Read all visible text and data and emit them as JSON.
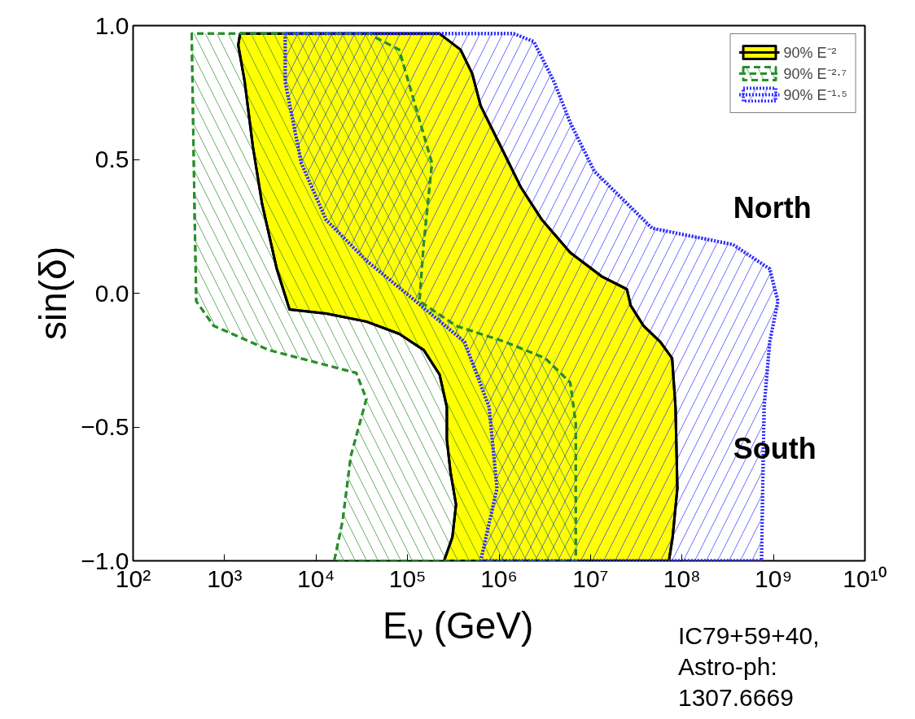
{
  "chart_data": {
    "type": "area",
    "xlabel": "E$_{ν}$ (GeV)",
    "ylabel": "sin(δ)",
    "log": "x",
    "xlim": [
      100,
      10000000000
    ],
    "ylim": [
      -1,
      1
    ],
    "xticks": [
      {
        "value": 100,
        "label": "10²"
      },
      {
        "value": 1000,
        "label": "10³"
      },
      {
        "value": 10000,
        "label": "10⁴"
      },
      {
        "value": 100000,
        "label": "10⁵"
      },
      {
        "value": 1000000,
        "label": "10⁶"
      },
      {
        "value": 10000000,
        "label": "10⁷"
      },
      {
        "value": 100000000,
        "label": "10⁸"
      },
      {
        "value": 1000000000,
        "label": "10⁹"
      },
      {
        "value": 10000000000,
        "label": "10¹⁰"
      }
    ],
    "yticks": [
      {
        "value": -1,
        "label": "−1.0"
      },
      {
        "value": -0.5,
        "label": "−0.5"
      },
      {
        "value": 0,
        "label": "0.0"
      },
      {
        "value": 0.5,
        "label": "0.5"
      },
      {
        "value": 1,
        "label": "1.0"
      }
    ],
    "grid": false,
    "legend": "top right",
    "series": [
      {
        "name": "90% E⁻²",
        "color": "#ffff00",
        "line_style": "solid",
        "x": [
          1480,
          1410,
          1660,
          2040,
          2570,
          3720,
          5130,
          12900,
          35500,
          81300,
          151000,
          224000,
          269000,
          269000,
          295000,
          339000,
          309000,
          251000,
          72000000,
          79000000,
          89000000,
          85000000,
          78000000,
          58000000,
          38000000,
          27500000,
          25000000,
          13500000,
          6000000,
          2950000,
          1740000,
          1050000,
          630000,
          510000,
          380000,
          224000
        ],
        "values": [
          0.97,
          0.927,
          0.79,
          0.547,
          0.334,
          0.091,
          -0.061,
          -0.076,
          -0.106,
          -0.152,
          -0.213,
          -0.304,
          -0.426,
          -0.547,
          -0.669,
          -0.79,
          -0.912,
          -1.0,
          -1.0,
          -0.912,
          -0.729,
          -0.426,
          -0.243,
          -0.182,
          -0.122,
          -0.046,
          0.015,
          0.061,
          0.152,
          0.274,
          0.395,
          0.547,
          0.7,
          0.82,
          0.91,
          0.97
        ]
      },
      {
        "name": "90% E⁻²·⁷",
        "color": "#2a8f2a",
        "line_style": "dashed",
        "x": [
          437,
          470,
          490,
          760,
          3090,
          27500,
          35500,
          24000,
          19500,
          15800,
          6900000,
          6900000,
          6000000,
          3200000,
          1170000,
          340000,
          135000,
          150000,
          185000,
          81000,
          44000,
          40000
        ],
        "values": [
          0.97,
          0.304,
          -0.03,
          -0.122,
          -0.213,
          -0.298,
          -0.395,
          -0.608,
          -0.851,
          -1.0,
          -1.0,
          -0.486,
          -0.334,
          -0.243,
          -0.182,
          -0.122,
          -0.03,
          0.182,
          0.486,
          0.91,
          0.957,
          0.97
        ]
      },
      {
        "name": "90% E⁻¹·⁵",
        "color": "#3333ff",
        "line_style": "dotted",
        "x": [
          4600,
          4600,
          6900,
          12900,
          35500,
          123000,
          420000,
          780000,
          950000,
          630000,
          740000000,
          790000000,
          910000000,
          1120000000,
          910000000,
          360000000,
          47000000,
          11000000,
          6000000,
          4000000,
          2400000,
          1450000
        ],
        "values": [
          0.97,
          0.79,
          0.486,
          0.274,
          0.122,
          -0.03,
          -0.182,
          -0.426,
          -0.729,
          -1.0,
          -1.0,
          -0.426,
          -0.182,
          -0.03,
          0.091,
          0.182,
          0.243,
          0.456,
          0.638,
          0.79,
          0.94,
          0.97
        ]
      }
    ],
    "annotations": [
      "North",
      "South",
      "IC79+59+40,\nAstro-ph:\n1307.6669"
    ]
  }
}
